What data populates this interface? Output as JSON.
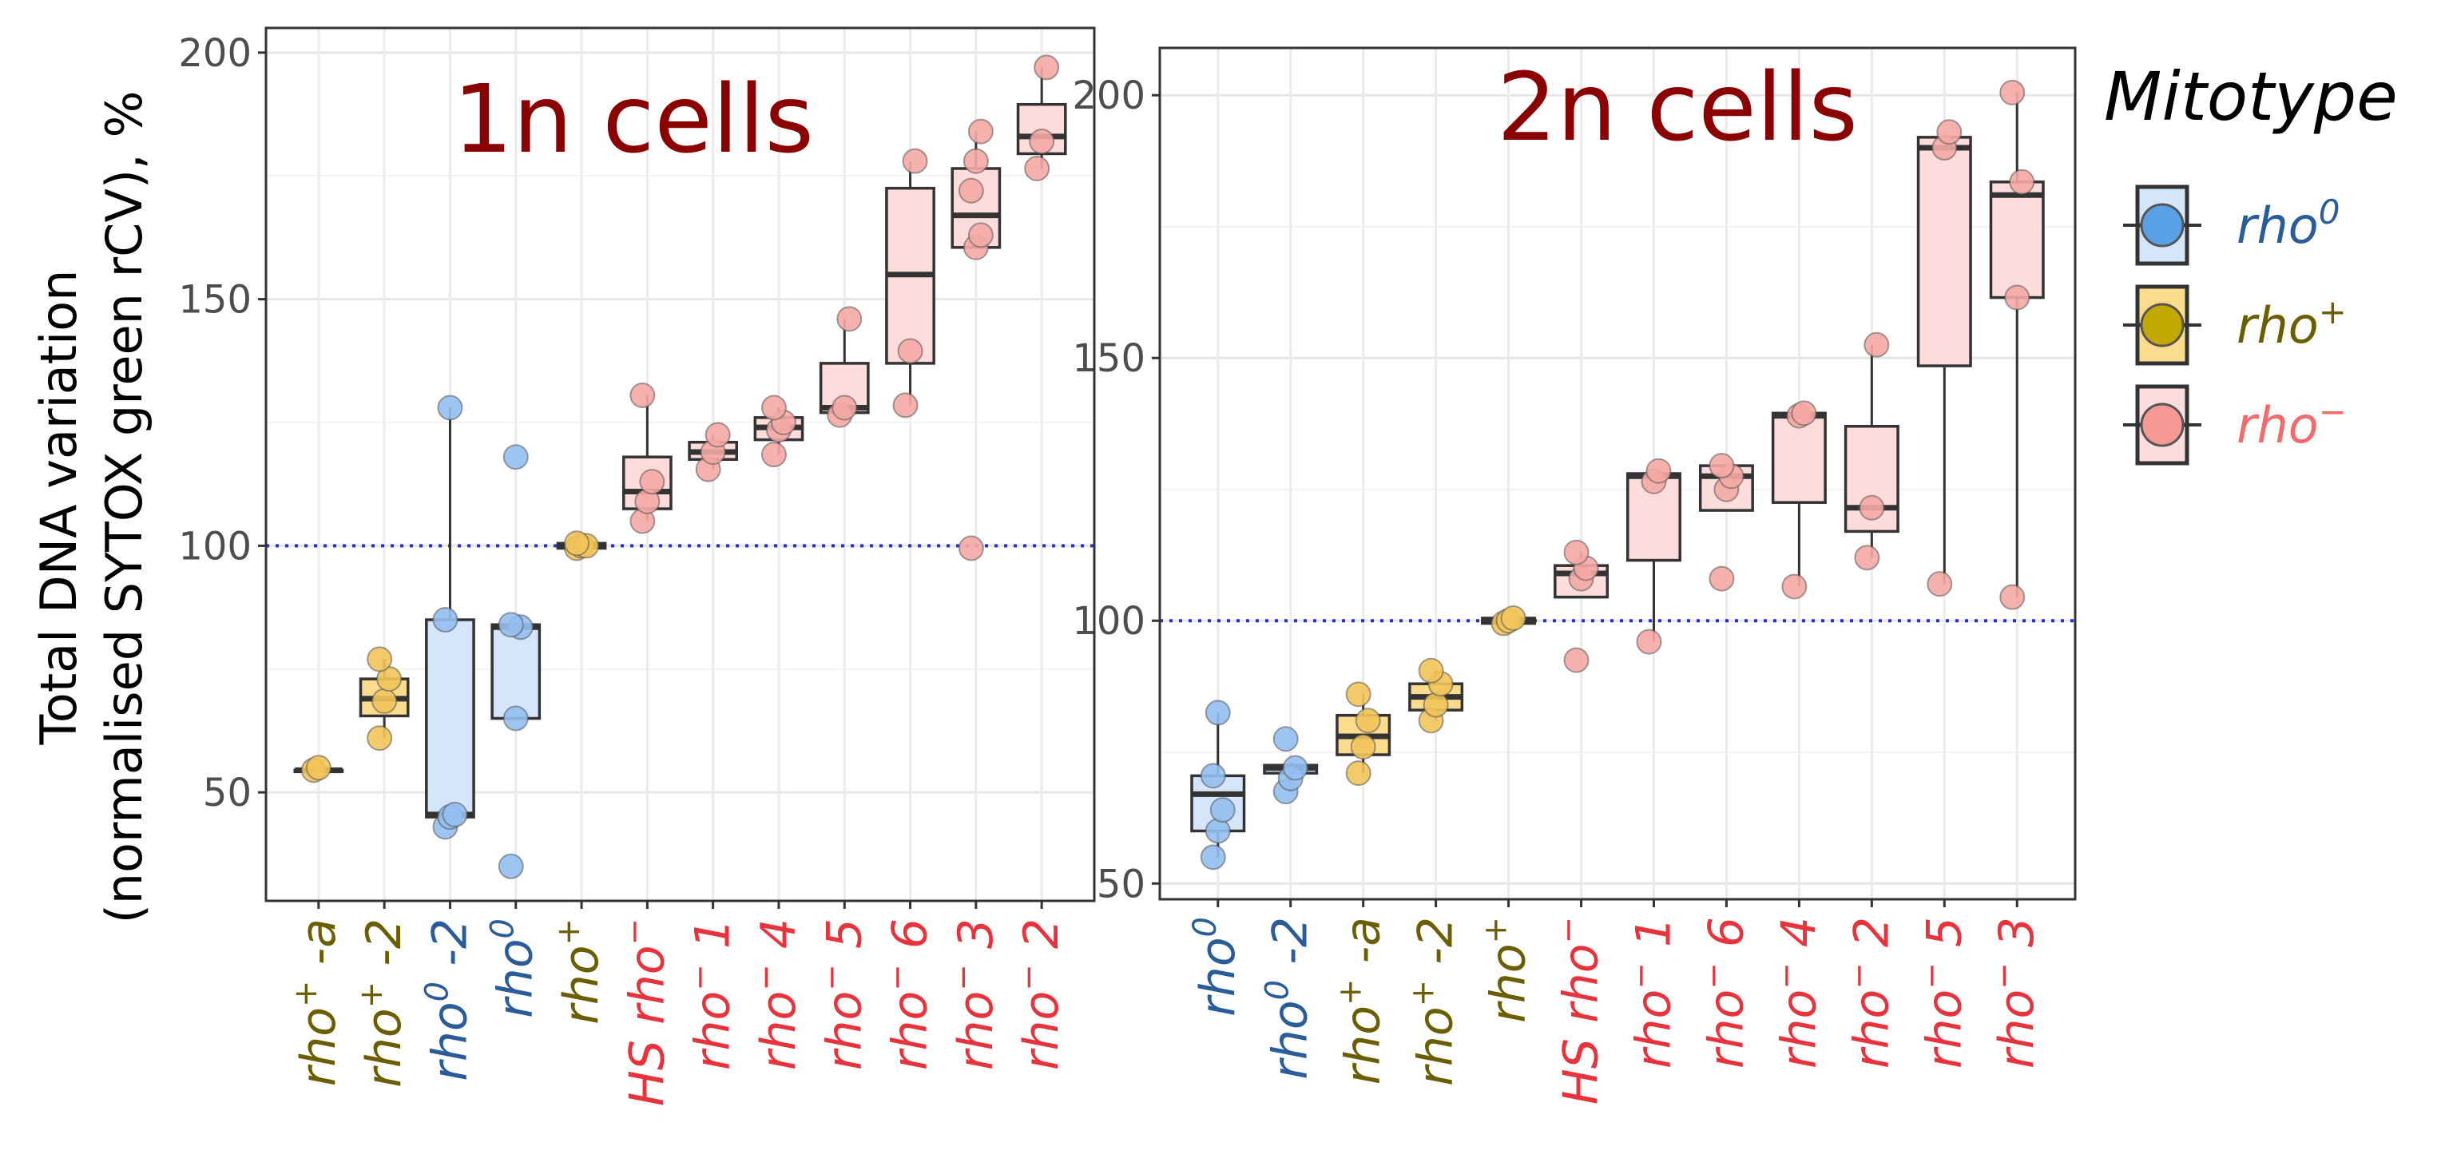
{
  "y_axis_label_line1": "Total DNA variation",
  "y_axis_label_line2": "(normalised SYTOX green rCV), %",
  "legend": {
    "title": "Mitotype",
    "entries": [
      {
        "key": "rho0",
        "base": "rho",
        "sup": "0",
        "text_color": "#2a5c9a",
        "fill": "#5aa0e8",
        "box_fill": "#d6e6fa"
      },
      {
        "key": "rhoplus",
        "base": "rho",
        "sup": "+",
        "text_color": "#6b5e00",
        "fill": "#c2a800",
        "box_fill": "#fbdc8e"
      },
      {
        "key": "rhominus",
        "base": "rho",
        "sup": "−",
        "text_color": "#f26b6b",
        "fill": "#f59a94",
        "box_fill": "#fddcdc"
      }
    ]
  },
  "colors": {
    "rho0": {
      "label": "#2a5c9a",
      "point": "#94bff0",
      "box": "#d6e6fa"
    },
    "rhoplus": {
      "label": "#6b5e00",
      "point": "#f2c45a",
      "box": "#fbdc8e"
    },
    "rhominus": {
      "label": "#e8323c",
      "point": "#f5a9a4",
      "box": "#fddcdc"
    },
    "reference_line": "#2b2bd6"
  },
  "chart_data": [
    {
      "type": "boxplot",
      "title": "1n cells",
      "ylabel": "Total DNA variation (normalised SYTOX green rCV), %",
      "ylim": [
        28,
        205
      ],
      "yticks": [
        50,
        100,
        150,
        200
      ],
      "reference_line": 100,
      "grid": true,
      "categories": [
        {
          "name": "rho+ -a",
          "pre": "",
          "base": "rho",
          "sup": "+",
          "post": " -a",
          "mitotype": "rhoplus",
          "box": {
            "q1": 54.5,
            "median": 54.5,
            "q3": 54.5,
            "lo": 54.5,
            "hi": 54.5
          },
          "points": [
            54.5,
            55
          ]
        },
        {
          "name": "rho+ -2",
          "pre": "",
          "base": "rho",
          "sup": "+",
          "post": " -2",
          "mitotype": "rhoplus",
          "box": {
            "q1": 65.5,
            "median": 69,
            "q3": 73,
            "lo": 61,
            "hi": 77
          },
          "points": [
            61,
            68.5,
            73,
            77
          ]
        },
        {
          "name": "rho0 -2",
          "pre": "",
          "base": "rho",
          "sup": "0",
          "post": " -2",
          "mitotype": "rho0",
          "box": {
            "q1": 45,
            "median": 45.5,
            "q3": 85,
            "lo": 43,
            "hi": 128
          },
          "points": [
            43,
            45,
            45.5,
            85,
            128
          ]
        },
        {
          "name": "rho0",
          "pre": "",
          "base": "rho",
          "sup": "0",
          "post": "",
          "mitotype": "rho0",
          "box": {
            "q1": 65,
            "median": 83.5,
            "q3": 84,
            "lo": 65,
            "hi": 84
          },
          "points": [
            35,
            65,
            83.5,
            84,
            118
          ]
        },
        {
          "name": "rho+",
          "pre": "",
          "base": "rho",
          "sup": "+",
          "post": "",
          "mitotype": "rhoplus",
          "box": {
            "q1": 99.5,
            "median": 100,
            "q3": 100.5,
            "lo": 99.5,
            "hi": 100.5
          },
          "points": [
            99.5,
            100,
            100,
            100.5
          ]
        },
        {
          "name": "HS rho-",
          "pre": "HS ",
          "base": "rho",
          "sup": "−",
          "post": "",
          "mitotype": "rhominus",
          "box": {
            "q1": 107.5,
            "median": 111,
            "q3": 118,
            "lo": 105,
            "hi": 130.5
          },
          "points": [
            105,
            109,
            113,
            130.5
          ]
        },
        {
          "name": "rho- 1",
          "pre": "",
          "base": "rho",
          "sup": "−",
          "post": " 1",
          "mitotype": "rhominus",
          "box": {
            "q1": 117.5,
            "median": 119,
            "q3": 121,
            "lo": 115.5,
            "hi": 122.5
          },
          "points": [
            115.5,
            119,
            122.5
          ]
        },
        {
          "name": "rho- 4",
          "pre": "",
          "base": "rho",
          "sup": "−",
          "post": " 4",
          "mitotype": "rhominus",
          "box": {
            "q1": 121.5,
            "median": 124,
            "q3": 126,
            "lo": 118.5,
            "hi": 128
          },
          "points": [
            118.5,
            123.5,
            125,
            128
          ]
        },
        {
          "name": "rho- 5",
          "pre": "",
          "base": "rho",
          "sup": "−",
          "post": " 5",
          "mitotype": "rhominus",
          "box": {
            "q1": 127,
            "median": 128,
            "q3": 137,
            "lo": 126.5,
            "hi": 146
          },
          "points": [
            126.5,
            128,
            146
          ]
        },
        {
          "name": "rho- 6",
          "pre": "",
          "base": "rho",
          "sup": "−",
          "post": " 6",
          "mitotype": "rhominus",
          "box": {
            "q1": 137,
            "median": 155,
            "q3": 172.5,
            "lo": 128.5,
            "hi": 178
          },
          "points": [
            128.5,
            139.5,
            178
          ]
        },
        {
          "name": "rho- 3",
          "pre": "",
          "base": "rho",
          "sup": "−",
          "post": " 3",
          "mitotype": "rhominus",
          "box": {
            "q1": 160.5,
            "median": 167,
            "q3": 176.5,
            "lo": 160.5,
            "hi": 184
          },
          "points": [
            99.5,
            160.5,
            163,
            172,
            178,
            184
          ]
        },
        {
          "name": "rho- 2",
          "pre": "",
          "base": "rho",
          "sup": "−",
          "post": " 2",
          "mitotype": "rhominus",
          "box": {
            "q1": 179.5,
            "median": 183,
            "q3": 189.5,
            "lo": 176.5,
            "hi": 197
          },
          "points": [
            176.5,
            182,
            197
          ]
        }
      ]
    },
    {
      "type": "boxplot",
      "title": "2n cells",
      "ylabel": "",
      "ylim": [
        47,
        209
      ],
      "yticks": [
        50,
        100,
        150,
        200
      ],
      "reference_line": 100,
      "grid": true,
      "categories": [
        {
          "name": "rho0",
          "pre": "",
          "base": "rho",
          "sup": "0",
          "post": "",
          "mitotype": "rho0",
          "box": {
            "q1": 60,
            "median": 67,
            "q3": 70.5,
            "lo": 55,
            "hi": 82.5
          },
          "points": [
            55,
            60,
            64,
            70.5,
            82.5
          ]
        },
        {
          "name": "rho0 -2",
          "pre": "",
          "base": "rho",
          "sup": "0",
          "post": " -2",
          "mitotype": "rho0",
          "box": {
            "q1": 71,
            "median": 72,
            "q3": 72.5,
            "lo": 67.5,
            "hi": 73
          },
          "points": [
            67.5,
            70,
            72,
            77.5
          ]
        },
        {
          "name": "rho+ -a",
          "pre": "",
          "base": "rho",
          "sup": "+",
          "post": " -a",
          "mitotype": "rhoplus",
          "box": {
            "q1": 74.5,
            "median": 78,
            "q3": 82,
            "lo": 71,
            "hi": 86
          },
          "points": [
            71,
            76,
            81,
            86
          ]
        },
        {
          "name": "rho+ -2",
          "pre": "",
          "base": "rho",
          "sup": "+",
          "post": " -2",
          "mitotype": "rhoplus",
          "box": {
            "q1": 83,
            "median": 85.5,
            "q3": 88,
            "lo": 81,
            "hi": 90.5
          },
          "points": [
            81,
            84,
            88,
            90.5
          ]
        },
        {
          "name": "rho+",
          "pre": "",
          "base": "rho",
          "sup": "+",
          "post": "",
          "mitotype": "rhoplus",
          "box": {
            "q1": 99.5,
            "median": 100,
            "q3": 100.5,
            "lo": 99.5,
            "hi": 100.5
          },
          "points": [
            99.5,
            100,
            100.5
          ]
        },
        {
          "name": "HS rho-",
          "pre": "HS ",
          "base": "rho",
          "sup": "−",
          "post": "",
          "mitotype": "rhominus",
          "box": {
            "q1": 104.5,
            "median": 109,
            "q3": 110.5,
            "lo": 104.5,
            "hi": 113
          },
          "points": [
            92.5,
            108,
            110,
            113
          ]
        },
        {
          "name": "rho- 1",
          "pre": "",
          "base": "rho",
          "sup": "−",
          "post": " 1",
          "mitotype": "rhominus",
          "box": {
            "q1": 111.5,
            "median": 127.5,
            "q3": 128,
            "lo": 96,
            "hi": 128
          },
          "points": [
            96,
            126.5,
            128.5
          ]
        },
        {
          "name": "rho- 6",
          "pre": "",
          "base": "rho",
          "sup": "−",
          "post": " 6",
          "mitotype": "rhominus",
          "box": {
            "q1": 121,
            "median": 127.5,
            "q3": 129.5,
            "lo": 121,
            "hi": 129.5
          },
          "points": [
            108,
            125,
            127.5,
            129.5
          ]
        },
        {
          "name": "rho- 4",
          "pre": "",
          "base": "rho",
          "sup": "−",
          "post": " 4",
          "mitotype": "rhominus",
          "box": {
            "q1": 122.5,
            "median": 139,
            "q3": 139.5,
            "lo": 106.5,
            "hi": 139.5
          },
          "points": [
            106.5,
            139,
            139.5
          ]
        },
        {
          "name": "rho- 2",
          "pre": "",
          "base": "rho",
          "sup": "−",
          "post": " 2",
          "mitotype": "rhominus",
          "box": {
            "q1": 117,
            "median": 121.5,
            "q3": 137,
            "lo": 112,
            "hi": 152.5
          },
          "points": [
            112,
            121.5,
            152.5
          ]
        },
        {
          "name": "rho- 5",
          "pre": "",
          "base": "rho",
          "sup": "−",
          "post": " 5",
          "mitotype": "rhominus",
          "box": {
            "q1": 148.5,
            "median": 190,
            "q3": 192,
            "lo": 107,
            "hi": 192
          },
          "points": [
            107,
            190,
            193
          ]
        },
        {
          "name": "rho- 3",
          "pre": "",
          "base": "rho",
          "sup": "−",
          "post": " 3",
          "mitotype": "rhominus",
          "box": {
            "q1": 161.5,
            "median": 181,
            "q3": 183.5,
            "lo": 104.5,
            "hi": 200.5
          },
          "points": [
            104.5,
            161.5,
            183.5,
            200.5
          ]
        }
      ]
    }
  ]
}
